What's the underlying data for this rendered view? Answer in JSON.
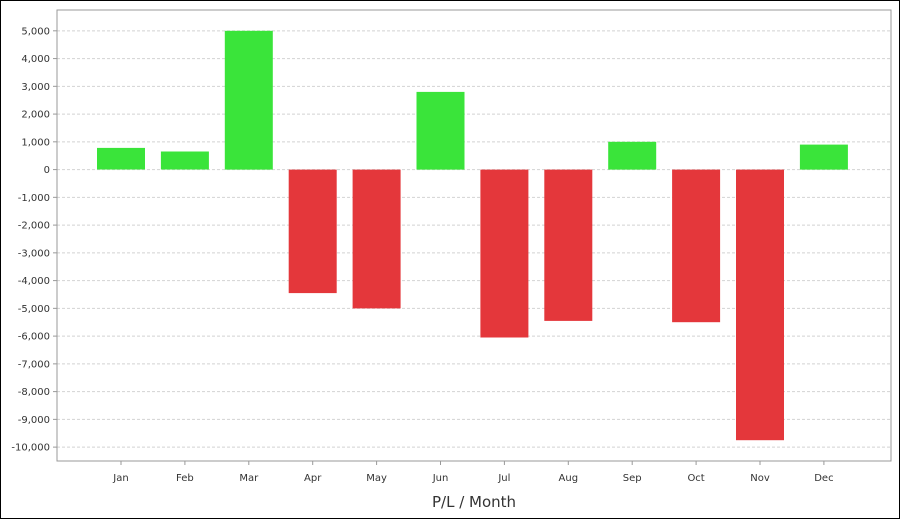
{
  "chart_data": {
    "type": "bar",
    "title": "",
    "xlabel": "P/L / Month",
    "ylabel": "",
    "categories": [
      "Jan",
      "Feb",
      "Mar",
      "Apr",
      "May",
      "Jun",
      "Jul",
      "Aug",
      "Sep",
      "Oct",
      "Nov",
      "Dec"
    ],
    "values": [
      780,
      650,
      5000,
      -4450,
      -5000,
      2800,
      -6050,
      -5450,
      1000,
      -5500,
      -9750,
      900
    ],
    "ylim": [
      -10500,
      5750
    ],
    "yticks": [
      5000,
      4000,
      3000,
      2000,
      1000,
      0,
      -1000,
      -2000,
      -3000,
      -4000,
      -5000,
      -6000,
      -7000,
      -8000,
      -9000,
      -10000
    ],
    "ytick_labels": [
      "5,000",
      "4,000",
      "3,000",
      "2,000",
      "1,000",
      "0",
      "-1,000",
      "-2,000",
      "-3,000",
      "-4,000",
      "-5,000",
      "-6,000",
      "-7,000",
      "-8,000",
      "-9,000",
      "-10,000"
    ],
    "grid": true,
    "legend": "none",
    "colors": {
      "positive": "#3ae43a",
      "negative": "#e4373b",
      "grid": "#d2d2d2",
      "axis": "#999999"
    }
  }
}
